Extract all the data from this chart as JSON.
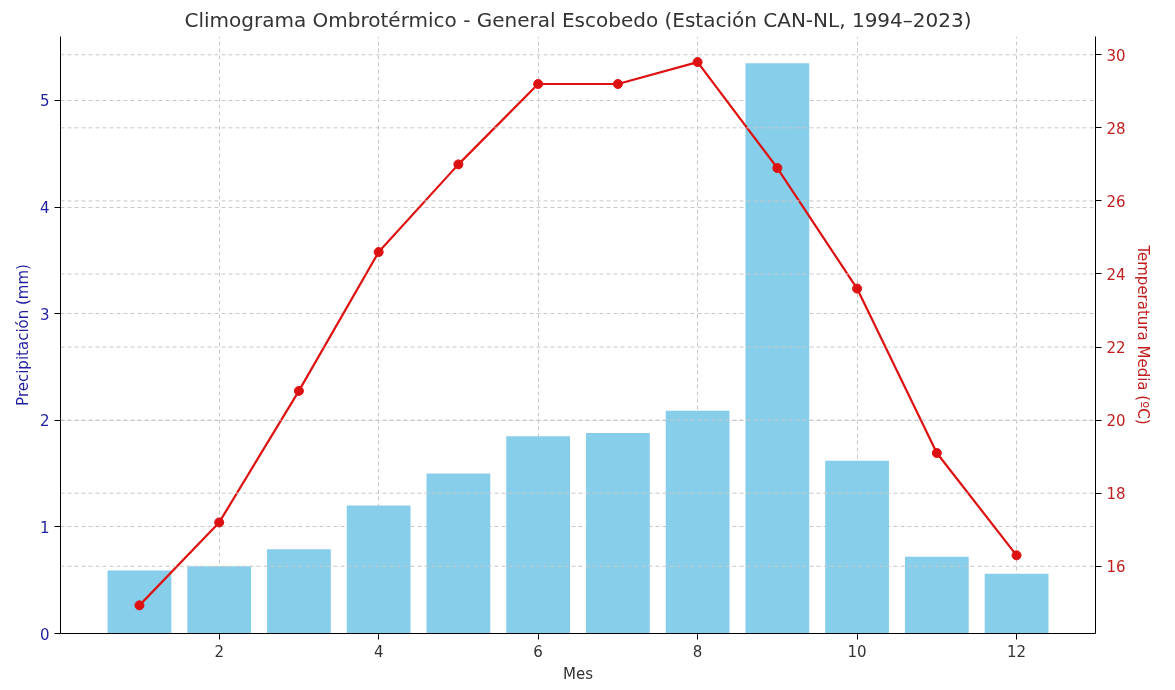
{
  "chart_data": {
    "type": "bar",
    "title": "Climograma Ombrotérmico - General Escobedo (Estación CAN-NL, 1994–2023)",
    "xlabel": "Mes",
    "ylabel": "Precipitación (mm)",
    "y2label": "Temperatura Media (ºC)",
    "x": [
      1,
      2,
      3,
      4,
      5,
      6,
      7,
      8,
      9,
      10,
      11,
      12
    ],
    "xlim": [
      0.01,
      12.99
    ],
    "xticks": [
      2,
      4,
      6,
      8,
      10,
      12
    ],
    "ylim": [
      0,
      5.6
    ],
    "yticks": [
      0,
      1,
      2,
      3,
      4,
      5
    ],
    "y2lim": [
      14.16,
      30.5
    ],
    "y2ticks": [
      16,
      18,
      20,
      22,
      24,
      26,
      28,
      30
    ],
    "grid": true,
    "series": [
      {
        "color": "#87ceeb",
        "values": [
          0.59,
          0.63,
          0.79,
          1.2,
          1.5,
          1.85,
          1.88,
          2.09,
          5.35,
          1.62,
          0.72,
          0.56
        ]
      },
      {
        "type": "line",
        "axis": "y2",
        "color": "#dd1111",
        "marker": "circle",
        "line_style": "solid",
        "values": [
          14.93,
          17.2,
          20.8,
          24.6,
          27.0,
          29.2,
          29.2,
          29.8,
          26.9,
          23.6,
          19.1,
          16.3
        ]
      }
    ]
  }
}
